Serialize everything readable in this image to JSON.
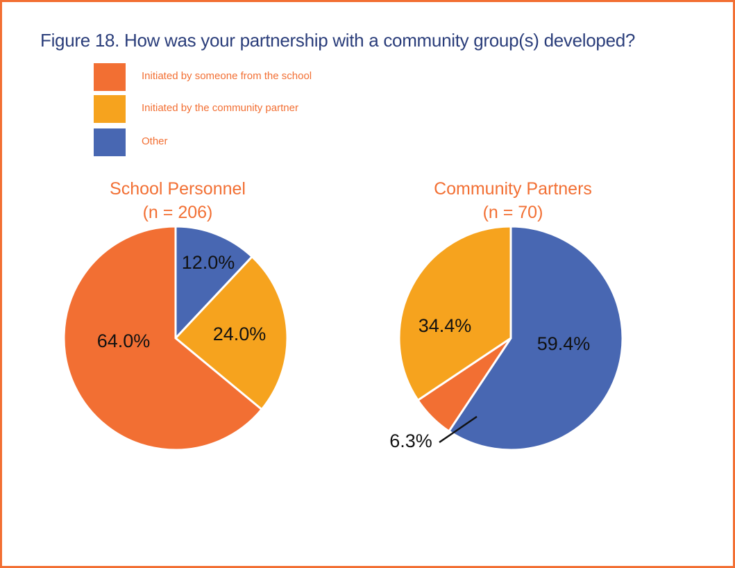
{
  "figure": {
    "title": "Figure 18. How was your partnership with a community group(s) developed?"
  },
  "legend": [
    {
      "label": "Initiated by someone from the school",
      "color": "#f26f33"
    },
    {
      "label": "Initiated by the community partner",
      "color": "#f6a31e"
    },
    {
      "label": "Other",
      "color": "#4867b2"
    }
  ],
  "chart_data": [
    {
      "type": "pie",
      "title": "School Personnel",
      "subtitle": "(n = 206)",
      "slices": [
        {
          "name": "Other",
          "value": 12.0,
          "label": "12.0%",
          "color": "#4867b2"
        },
        {
          "name": "Initiated by the community partner",
          "value": 24.0,
          "label": "24.0%",
          "color": "#f6a31e"
        },
        {
          "name": "Initiated by someone from the school",
          "value": 64.0,
          "label": "64.0%",
          "color": "#f26f33"
        }
      ]
    },
    {
      "type": "pie",
      "title": "Community Partners",
      "subtitle": "(n = 70)",
      "slices": [
        {
          "name": "Other",
          "value": 59.4,
          "label": "59.4%",
          "color": "#4867b2"
        },
        {
          "name": "Initiated by someone from the school",
          "value": 6.3,
          "label": "6.3%",
          "color": "#f26f33"
        },
        {
          "name": "Initiated by the community partner",
          "value": 34.4,
          "label": "34.4%",
          "color": "#f6a31e"
        }
      ]
    }
  ]
}
